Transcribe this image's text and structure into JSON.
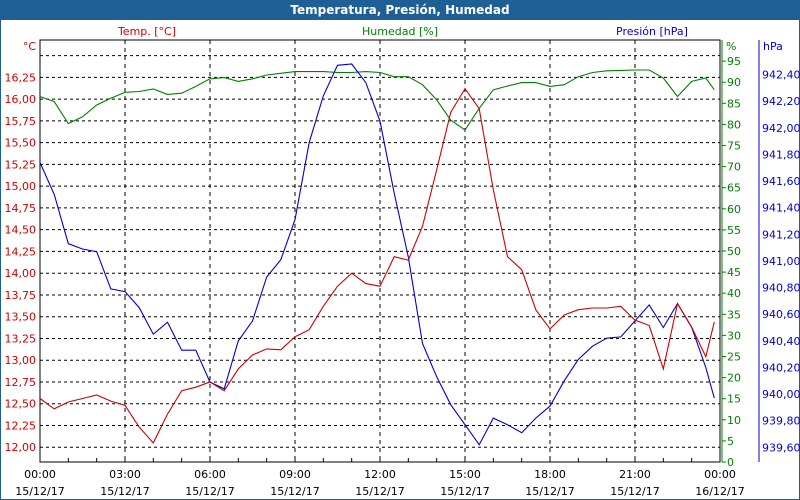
{
  "title": "Temperatura, Presión, Humedad",
  "colors": {
    "temp": "#d00000",
    "hum": "#008000",
    "pres": "#0000d0",
    "title_bg": "#1e6096"
  },
  "chart_data": {
    "type": "line",
    "title": "Temperatura, Presión, Humedad",
    "x_unit": "hours since 15/12/17 00:00",
    "x": [
      0,
      0.5,
      1,
      1.5,
      2,
      2.5,
      3,
      3.5,
      4,
      4.5,
      5,
      5.5,
      6,
      6.5,
      7,
      7.5,
      8,
      8.5,
      9,
      9.5,
      10,
      10.5,
      11,
      11.5,
      12,
      12.5,
      13,
      13.5,
      14,
      14.5,
      15,
      15.5,
      16,
      16.5,
      17,
      17.5,
      18,
      18.5,
      19,
      19.5,
      20,
      20.5,
      21,
      21.5,
      22,
      22.5,
      23,
      23.5,
      23.8
    ],
    "xlim": [
      0,
      24
    ],
    "x_ticks": [
      {
        "h": 0,
        "time": "00:00",
        "date": "15/12/17"
      },
      {
        "h": 3,
        "time": "03:00",
        "date": "15/12/17"
      },
      {
        "h": 6,
        "time": "06:00",
        "date": "15/12/17"
      },
      {
        "h": 9,
        "time": "09:00",
        "date": "15/12/17"
      },
      {
        "h": 12,
        "time": "12:00",
        "date": "15/12/17"
      },
      {
        "h": 15,
        "time": "15:00",
        "date": "15/12/17"
      },
      {
        "h": 18,
        "time": "18:00",
        "date": "15/12/17"
      },
      {
        "h": 21,
        "time": "21:00",
        "date": "15/12/17"
      },
      {
        "h": 24,
        "time": "00:00",
        "date": "16/12/17"
      }
    ],
    "series": [
      {
        "name": "Temp. [°C]",
        "axis": "left",
        "unit": "°C",
        "values": [
          12.56,
          12.44,
          12.52,
          12.56,
          12.6,
          12.53,
          12.48,
          12.23,
          12.05,
          12.38,
          12.65,
          12.69,
          12.75,
          12.65,
          12.9,
          13.06,
          13.13,
          13.12,
          13.27,
          13.35,
          13.62,
          13.85,
          14.0,
          13.88,
          13.85,
          14.19,
          14.15,
          14.54,
          15.19,
          15.85,
          16.12,
          15.89,
          14.96,
          14.19,
          14.04,
          13.58,
          13.36,
          13.52,
          13.58,
          13.6,
          13.6,
          13.62,
          13.46,
          13.4,
          12.9,
          13.65,
          13.38,
          13.04,
          13.44
        ],
        "ylim": [
          11.83,
          16.68
        ],
        "ticks": [
          "12,00",
          "12,25",
          "12,50",
          "12,75",
          "13,00",
          "13,25",
          "13,50",
          "13,75",
          "14,00",
          "14,25",
          "14,50",
          "14,75",
          "15,00",
          "15,25",
          "15,50",
          "15,75",
          "16,00",
          "16,25"
        ]
      },
      {
        "name": "Humedad [%]",
        "axis": "right",
        "unit": "%",
        "values": [
          86.6,
          85.4,
          80.2,
          81.8,
          84.6,
          86.2,
          87.6,
          87.8,
          88.4,
          87.1,
          87.4,
          89.0,
          90.8,
          91.1,
          90.2,
          90.8,
          91.7,
          92.1,
          92.5,
          92.5,
          92.5,
          92.3,
          92.3,
          92.5,
          92.3,
          91.3,
          91.3,
          89.4,
          85.8,
          81.0,
          78.7,
          83.8,
          88.2,
          89.1,
          89.9,
          89.9,
          89.0,
          89.4,
          91.3,
          92.3,
          92.7,
          92.8,
          92.9,
          92.9,
          91.0,
          86.6,
          90.2,
          91.0,
          88.2
        ],
        "ylim": [
          0,
          100
        ],
        "ticks": [
          "0",
          "5",
          "10",
          "15",
          "20",
          "25",
          "30",
          "35",
          "40",
          "45",
          "50",
          "55",
          "60",
          "65",
          "70",
          "75",
          "80",
          "85",
          "90",
          "95"
        ]
      },
      {
        "name": "Presión [hPa]",
        "axis": "right2",
        "unit": "hPa",
        "values": [
          941.74,
          941.5,
          941.13,
          941.09,
          941.07,
          940.79,
          940.77,
          940.65,
          940.45,
          940.54,
          940.33,
          940.33,
          940.09,
          940.04,
          940.4,
          940.55,
          940.88,
          941.01,
          941.31,
          941.89,
          942.24,
          942.47,
          942.48,
          942.34,
          942.05,
          941.51,
          941.03,
          940.38,
          940.13,
          939.92,
          939.77,
          939.62,
          939.82,
          939.77,
          939.71,
          939.82,
          939.91,
          940.1,
          940.26,
          940.36,
          940.42,
          940.43,
          940.55,
          940.67,
          940.5,
          940.68,
          940.5,
          940.2,
          939.97
        ],
        "ylim": [
          939.49,
          942.66
        ],
        "ticks": [
          "939,60",
          "939,80",
          "940,00",
          "940,20",
          "940,40",
          "940,60",
          "940,80",
          "941,00",
          "941,20",
          "941,40",
          "941,60",
          "941,80",
          "942,00",
          "942,20",
          "942,40"
        ]
      }
    ],
    "grid": true
  }
}
